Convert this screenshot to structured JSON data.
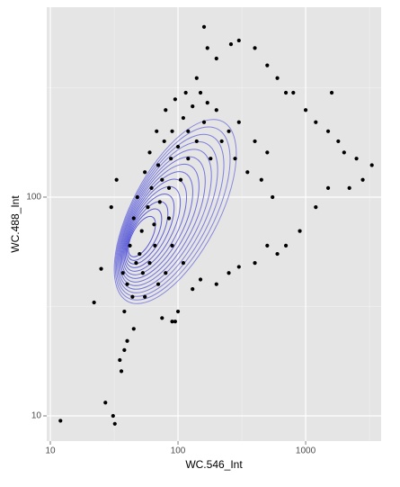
{
  "chart_data": {
    "type": "scatter",
    "x_label": "WC.546_Int",
    "y_label": "WC.488_Int",
    "log_x": true,
    "log_y": true,
    "grid": true,
    "color": "#000000",
    "contour_color": "#3b3bd6",
    "xlim": [
      9.37,
      3900
    ],
    "ylim": [
      7.67,
      738
    ],
    "xticks": [
      10,
      100,
      1000
    ],
    "yticks": [
      10,
      100
    ],
    "x": [
      12,
      27,
      31,
      32,
      22,
      25,
      30,
      33,
      35,
      36,
      38,
      40,
      45,
      55,
      75,
      90,
      95,
      100,
      120,
      140,
      160,
      170,
      200,
      260,
      300,
      400,
      500,
      600,
      700,
      800,
      1000,
      1200,
      1500,
      1600,
      1800,
      2000,
      2500,
      3300,
      2800,
      2200,
      1500,
      1200,
      900,
      700,
      600,
      500,
      400,
      300,
      250,
      200,
      150,
      130,
      110,
      90,
      80,
      70,
      40,
      42,
      45,
      48,
      50,
      52,
      55,
      58,
      60,
      62,
      65,
      68,
      70,
      72,
      75,
      78,
      80,
      85,
      88,
      90,
      95,
      100,
      105,
      110,
      115,
      120,
      130,
      140,
      150,
      160,
      170,
      180,
      200,
      220,
      250,
      280,
      300,
      350,
      400,
      450,
      500,
      550,
      38,
      37,
      44,
      47,
      53,
      60,
      66,
      85
    ],
    "y": [
      9.5,
      11.5,
      10,
      9.2,
      33,
      47,
      90,
      120,
      18,
      16,
      20,
      22,
      25,
      35,
      28,
      27,
      27,
      30,
      150,
      350,
      600,
      480,
      430,
      500,
      520,
      480,
      400,
      350,
      300,
      300,
      250,
      220,
      200,
      300,
      180,
      160,
      150,
      140,
      120,
      110,
      110,
      90,
      70,
      60,
      55,
      60,
      50,
      48,
      45,
      40,
      42,
      38,
      50,
      60,
      45,
      40,
      40,
      60,
      80,
      100,
      55,
      70,
      130,
      90,
      160,
      110,
      75,
      200,
      140,
      95,
      120,
      180,
      250,
      110,
      150,
      200,
      280,
      170,
      120,
      230,
      300,
      200,
      260,
      180,
      300,
      220,
      270,
      150,
      250,
      180,
      200,
      150,
      220,
      130,
      180,
      120,
      160,
      100,
      30,
      45,
      35,
      50,
      45,
      50,
      60,
      80
    ]
  }
}
